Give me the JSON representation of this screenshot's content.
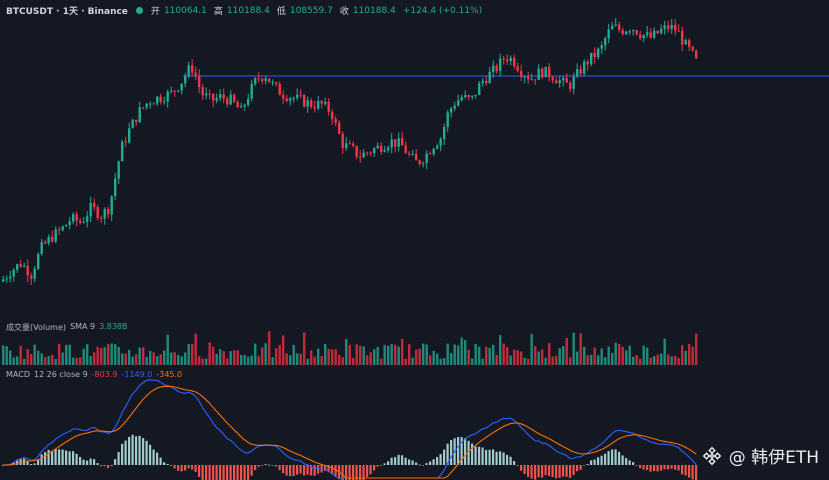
{
  "legend": {
    "symbol": "BTCUSDT · 1天 · Binance",
    "open_label": "开",
    "open_value": "110064.1",
    "high_label": "高",
    "high_value": "110188.4",
    "low_label": "低",
    "low_value": "108559.7",
    "close_label": "收",
    "close_value": "110188.4",
    "change": "+124.4 (+0.11%)"
  },
  "volume": {
    "title": "成交量(Volume)",
    "params": "SMA 9",
    "value": "3.838B"
  },
  "macd": {
    "title": "MACD",
    "params": "12 26 close 9",
    "hist_value": "-803.9",
    "macd_value": "-1149.0",
    "signal_value": "-345.0"
  },
  "watermark": {
    "icon": "binance-logo-icon",
    "text": "@ 韩伊ETH"
  },
  "colors": {
    "background": "#141823",
    "up": "#22ab94",
    "down": "#f23645",
    "macd_line": "#2962ff",
    "signal_line": "#ff6d00",
    "hline": "#2962ff"
  },
  "chart_data": {
    "type": "candlestick",
    "symbol": "BTCUSDT",
    "interval": "1天",
    "exchange": "Binance",
    "price_path": [
      [
        0,
        55
      ],
      [
        10,
        58
      ],
      [
        20,
        60
      ],
      [
        30,
        57
      ],
      [
        40,
        64
      ],
      [
        50,
        67
      ],
      [
        60,
        69
      ],
      [
        70,
        72
      ],
      [
        80,
        71
      ],
      [
        90,
        75
      ],
      [
        100,
        73
      ],
      [
        108,
        75
      ],
      [
        114,
        83
      ],
      [
        120,
        91
      ],
      [
        128,
        96
      ],
      [
        138,
        101
      ],
      [
        148,
        104
      ],
      [
        160,
        105
      ],
      [
        170,
        106
      ],
      [
        180,
        109
      ],
      [
        186,
        112
      ],
      [
        192,
        113
      ],
      [
        200,
        106
      ],
      [
        210,
        104
      ],
      [
        220,
        105
      ],
      [
        230,
        104
      ],
      [
        240,
        101
      ],
      [
        248,
        106
      ],
      [
        256,
        110
      ],
      [
        264,
        111
      ],
      [
        272,
        108
      ],
      [
        280,
        106
      ],
      [
        290,
        105
      ],
      [
        300,
        104
      ],
      [
        310,
        103
      ],
      [
        320,
        103
      ],
      [
        330,
        101
      ],
      [
        336,
        96
      ],
      [
        342,
        92
      ],
      [
        350,
        91
      ],
      [
        358,
        89
      ],
      [
        366,
        90
      ],
      [
        374,
        91
      ],
      [
        382,
        92
      ],
      [
        390,
        93
      ],
      [
        400,
        92
      ],
      [
        408,
        89
      ],
      [
        416,
        87
      ],
      [
        424,
        89
      ],
      [
        432,
        92
      ],
      [
        440,
        94
      ],
      [
        446,
        100
      ],
      [
        452,
        103
      ],
      [
        460,
        105
      ],
      [
        470,
        104
      ],
      [
        480,
        109
      ],
      [
        488,
        111
      ],
      [
        496,
        113
      ],
      [
        504,
        116
      ],
      [
        512,
        115
      ],
      [
        520,
        112
      ],
      [
        530,
        110
      ],
      [
        540,
        112
      ],
      [
        550,
        111
      ],
      [
        560,
        109
      ],
      [
        568,
        108
      ],
      [
        576,
        111
      ],
      [
        584,
        114
      ],
      [
        592,
        116
      ],
      [
        600,
        118
      ],
      [
        606,
        122
      ],
      [
        612,
        124
      ],
      [
        620,
        123
      ],
      [
        630,
        124
      ],
      [
        640,
        122
      ],
      [
        650,
        121
      ],
      [
        660,
        123
      ],
      [
        668,
        124
      ],
      [
        676,
        123
      ],
      [
        684,
        119
      ],
      [
        690,
        117
      ],
      [
        696,
        114
      ]
    ],
    "horizontal_line": 114
  }
}
